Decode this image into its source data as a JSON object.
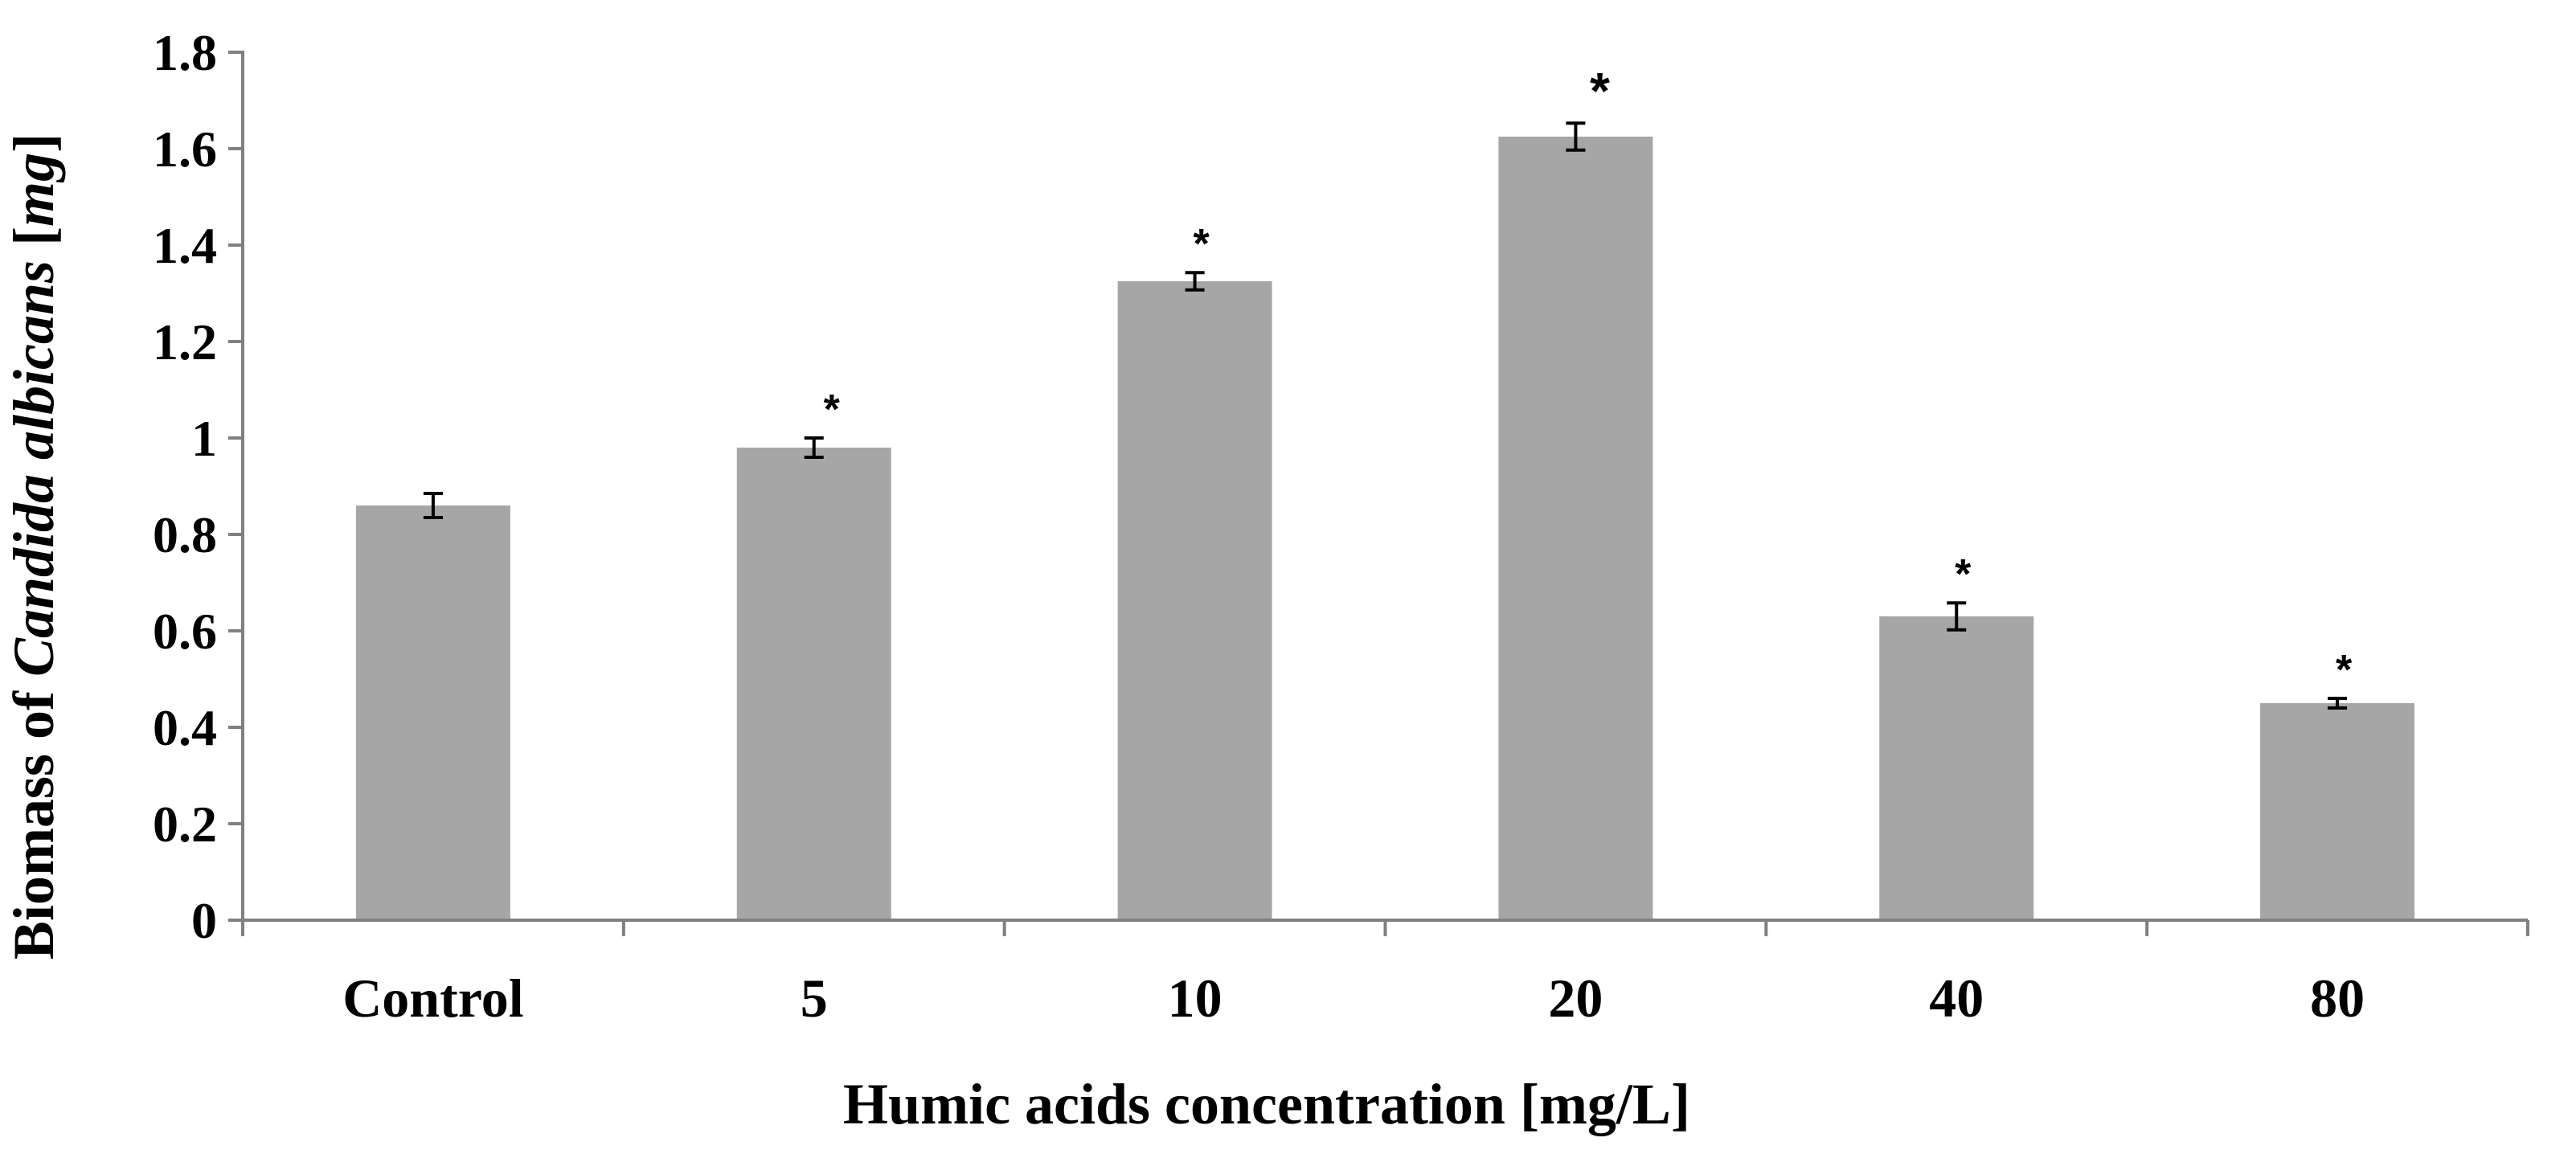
{
  "chart_data": {
    "type": "bar",
    "title": "",
    "xlabel": "Humic acids concentration [mg/L]",
    "ylabel": {
      "prefix": "Biomass of ",
      "italic": "Candida albicans",
      "middle": " [",
      "italic_unit": "mg",
      "suffix": "]"
    },
    "categories": [
      "Control",
      "5",
      "10",
      "20",
      "40",
      "80"
    ],
    "values": [
      0.86,
      0.98,
      1.325,
      1.625,
      0.63,
      0.45
    ],
    "errors": [
      0.025,
      0.02,
      0.018,
      0.028,
      0.028,
      0.01
    ],
    "significance": [
      "",
      "*",
      "*",
      "*",
      "*",
      "*"
    ],
    "ylim": [
      0,
      1.8
    ],
    "yticks": [
      0,
      0.2,
      0.4,
      0.6,
      0.8,
      1,
      1.2,
      1.4,
      1.6,
      1.8
    ],
    "ytick_labels": [
      "0",
      "0.2",
      "0.4",
      "0.6",
      "0.8",
      "1",
      "1.2",
      "1.4",
      "1.6",
      "1.8"
    ],
    "grid": false,
    "legend": "none",
    "bar_color": "#a6a6a6",
    "axis_color": "#808080"
  }
}
